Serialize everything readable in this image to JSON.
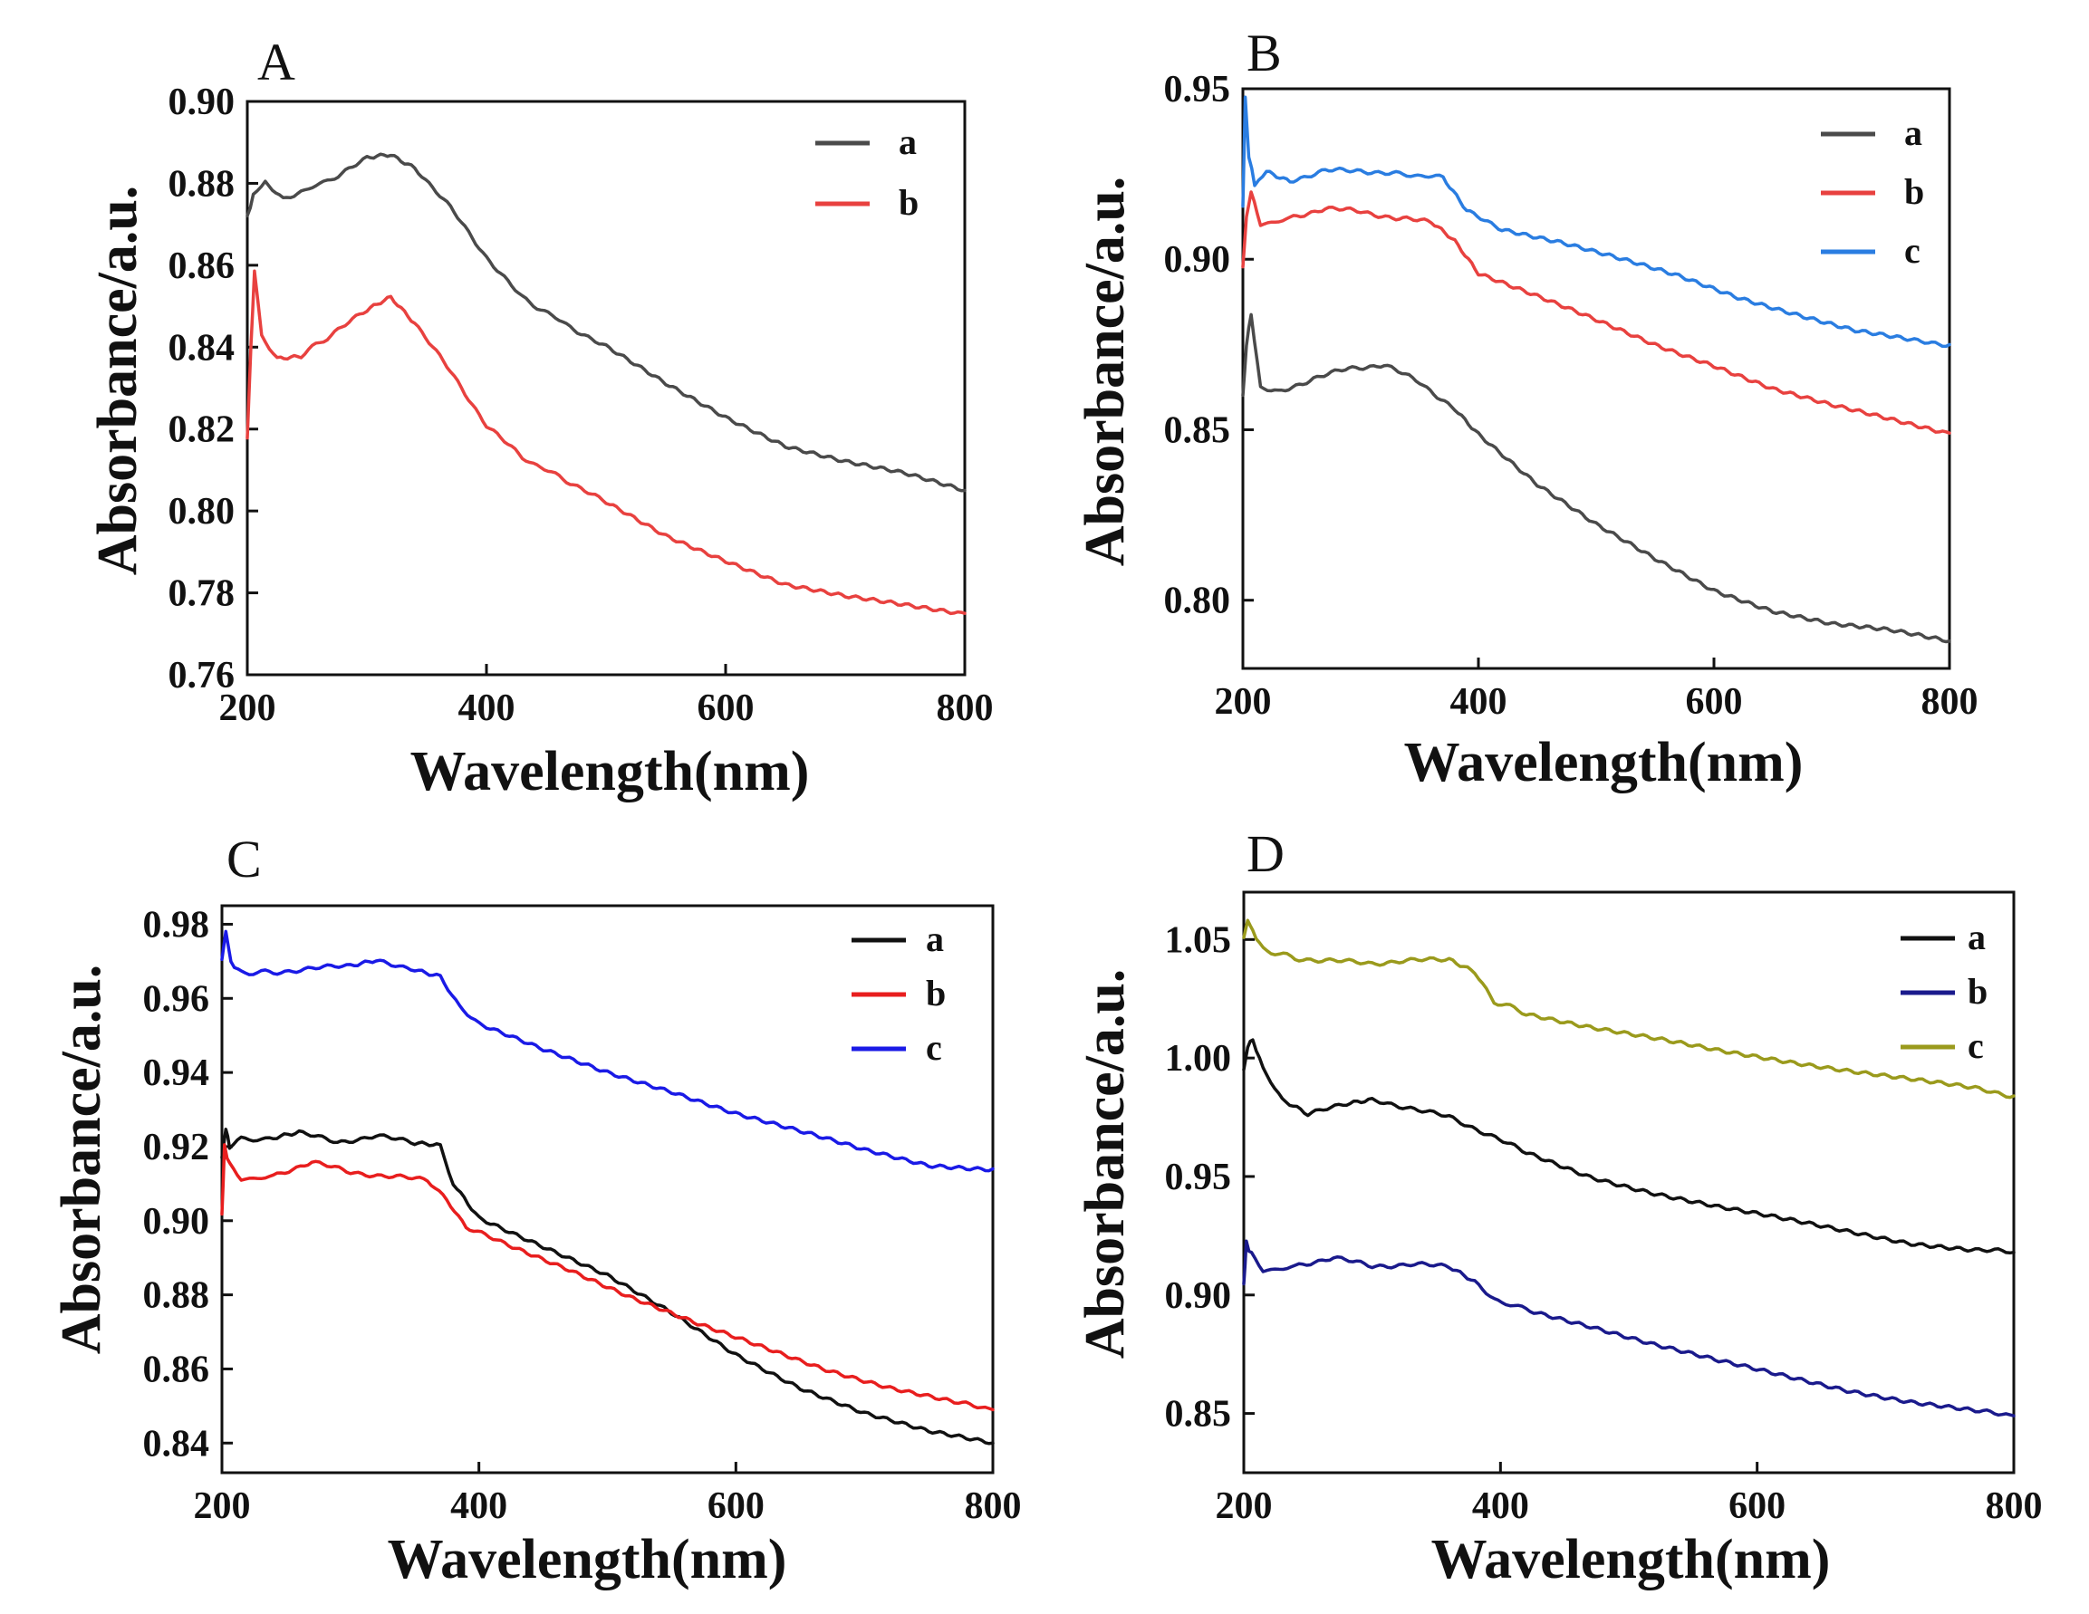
{
  "chart_data": [
    {
      "type": "line",
      "panel": "A",
      "xlabel": "Wavelength(nm)",
      "ylabel": "Absorbance/a.u.",
      "xlim": [
        200,
        800
      ],
      "ylim": [
        0.76,
        0.9
      ],
      "xticks": [
        "200",
        "400",
        "600",
        "800"
      ],
      "yticks": [
        "0.76",
        "0.78",
        "0.80",
        "0.82",
        "0.84",
        "0.86",
        "0.88",
        "0.90"
      ],
      "xtick_values": [
        200,
        400,
        600,
        800
      ],
      "ytick_values": [
        0.76,
        0.78,
        0.8,
        0.82,
        0.84,
        0.86,
        0.88,
        0.9
      ],
      "legend_position": "top-right",
      "series": [
        {
          "name": "a",
          "color": "#4a4a4a",
          "x": [
            200,
            205,
            215,
            230,
            245,
            270,
            300,
            320,
            340,
            370,
            400,
            430,
            470,
            500,
            550,
            600,
            650,
            700,
            750,
            800
          ],
          "y": [
            0.872,
            0.877,
            0.88,
            0.876,
            0.878,
            0.881,
            0.886,
            0.887,
            0.884,
            0.874,
            0.862,
            0.852,
            0.845,
            0.84,
            0.831,
            0.823,
            0.816,
            0.812,
            0.809,
            0.805
          ]
        },
        {
          "name": "b",
          "color": "#e8413f",
          "x": [
            200,
            203,
            206,
            212,
            225,
            245,
            270,
            300,
            320,
            340,
            370,
            400,
            430,
            470,
            500,
            550,
            600,
            650,
            700,
            750,
            800
          ],
          "y": [
            0.818,
            0.84,
            0.858,
            0.843,
            0.837,
            0.838,
            0.843,
            0.849,
            0.852,
            0.846,
            0.834,
            0.821,
            0.813,
            0.807,
            0.802,
            0.794,
            0.788,
            0.782,
            0.779,
            0.777,
            0.775
          ]
        }
      ]
    },
    {
      "type": "line",
      "panel": "B",
      "xlabel": "Wavelength(nm)",
      "ylabel": "Absorbance/a.u.",
      "xlim": [
        200,
        800
      ],
      "ylim": [
        0.78,
        0.95
      ],
      "xticks": [
        "200",
        "400",
        "600",
        "800"
      ],
      "yticks": [
        "0.80",
        "0.85",
        "0.90",
        "0.95"
      ],
      "xtick_values": [
        200,
        400,
        600,
        800
      ],
      "ytick_values": [
        0.8,
        0.85,
        0.9,
        0.95
      ],
      "legend_position": "top-right",
      "series": [
        {
          "name": "a",
          "color": "#4a4a4a",
          "x": [
            200,
            203,
            207,
            215,
            230,
            260,
            290,
            320,
            350,
            380,
            400,
            450,
            500,
            550,
            600,
            650,
            700,
            750,
            800
          ],
          "y": [
            0.86,
            0.875,
            0.884,
            0.862,
            0.861,
            0.865,
            0.868,
            0.869,
            0.864,
            0.856,
            0.849,
            0.834,
            0.822,
            0.812,
            0.803,
            0.797,
            0.793,
            0.791,
            0.788
          ]
        },
        {
          "name": "b",
          "color": "#e8413f",
          "x": [
            200,
            203,
            207,
            215,
            240,
            270,
            300,
            330,
            360,
            380,
            400,
            450,
            500,
            550,
            600,
            650,
            700,
            750,
            800
          ],
          "y": [
            0.898,
            0.912,
            0.92,
            0.91,
            0.912,
            0.915,
            0.914,
            0.912,
            0.911,
            0.905,
            0.896,
            0.889,
            0.882,
            0.875,
            0.869,
            0.862,
            0.857,
            0.853,
            0.849
          ]
        },
        {
          "name": "c",
          "color": "#2a7de1",
          "x": [
            200,
            202,
            205,
            210,
            220,
            240,
            270,
            300,
            330,
            370,
            390,
            420,
            470,
            520,
            570,
            620,
            670,
            720,
            770,
            800
          ],
          "y": [
            0.915,
            0.948,
            0.93,
            0.922,
            0.926,
            0.923,
            0.926,
            0.926,
            0.925,
            0.924,
            0.914,
            0.909,
            0.905,
            0.9,
            0.895,
            0.889,
            0.884,
            0.879,
            0.876,
            0.875
          ]
        }
      ]
    },
    {
      "type": "line",
      "panel": "C",
      "xlabel": "Wavelength(nm)",
      "ylabel": "Absorbance/a.u.",
      "xlim": [
        200,
        800
      ],
      "ylim": [
        0.832,
        0.985
      ],
      "xticks": [
        "200",
        "400",
        "600",
        "800"
      ],
      "yticks": [
        "0.84",
        "0.86",
        "0.88",
        "0.90",
        "0.92",
        "0.94",
        "0.96",
        "0.98"
      ],
      "xtick_values": [
        200,
        400,
        600,
        800
      ],
      "ytick_values": [
        0.84,
        0.86,
        0.88,
        0.9,
        0.92,
        0.94,
        0.96,
        0.98
      ],
      "legend_position": "top-right",
      "series": [
        {
          "name": "a",
          "color": "#111111",
          "x": [
            200,
            203,
            206,
            215,
            240,
            260,
            290,
            320,
            350,
            370,
            380,
            400,
            450,
            500,
            550,
            600,
            650,
            700,
            750,
            800
          ],
          "y": [
            0.917,
            0.925,
            0.92,
            0.922,
            0.922,
            0.924,
            0.921,
            0.923,
            0.921,
            0.92,
            0.91,
            0.901,
            0.893,
            0.885,
            0.875,
            0.864,
            0.855,
            0.848,
            0.843,
            0.84
          ]
        },
        {
          "name": "b",
          "color": "#e81e1e",
          "x": [
            200,
            202,
            206,
            215,
            240,
            270,
            300,
            330,
            360,
            375,
            390,
            420,
            470,
            520,
            570,
            620,
            670,
            720,
            770,
            800
          ],
          "y": [
            0.902,
            0.92,
            0.915,
            0.911,
            0.912,
            0.916,
            0.913,
            0.912,
            0.911,
            0.906,
            0.898,
            0.894,
            0.887,
            0.879,
            0.872,
            0.866,
            0.86,
            0.855,
            0.851,
            0.849
          ]
        },
        {
          "name": "c",
          "color": "#1a1ae6",
          "x": [
            200,
            203,
            207,
            215,
            240,
            270,
            300,
            320,
            350,
            370,
            385,
            400,
            450,
            500,
            550,
            600,
            650,
            700,
            750,
            800
          ],
          "y": [
            0.97,
            0.978,
            0.97,
            0.967,
            0.967,
            0.968,
            0.969,
            0.97,
            0.968,
            0.966,
            0.958,
            0.953,
            0.946,
            0.94,
            0.935,
            0.929,
            0.924,
            0.919,
            0.915,
            0.914
          ]
        }
      ]
    },
    {
      "type": "line",
      "panel": "D",
      "xlabel": "Wavelength(nm)",
      "ylabel": "Absorbance/a.u.",
      "xlim": [
        200,
        800
      ],
      "ylim": [
        0.825,
        1.07
      ],
      "xticks": [
        "200",
        "400",
        "600",
        "800"
      ],
      "yticks": [
        "0.85",
        "0.90",
        "0.95",
        "1.00",
        "1.05"
      ],
      "xtick_values": [
        200,
        400,
        600,
        800
      ],
      "ytick_values": [
        0.85,
        0.9,
        0.95,
        1.0,
        1.05
      ],
      "legend_position": "top-right",
      "series": [
        {
          "name": "a",
          "color": "#111111",
          "x": [
            200,
            203,
            207,
            215,
            230,
            250,
            280,
            300,
            330,
            360,
            390,
            420,
            470,
            520,
            570,
            620,
            670,
            720,
            770,
            800
          ],
          "y": [
            0.995,
            1.005,
            1.008,
            0.995,
            0.982,
            0.976,
            0.981,
            0.982,
            0.979,
            0.975,
            0.968,
            0.96,
            0.95,
            0.943,
            0.937,
            0.932,
            0.927,
            0.922,
            0.919,
            0.918
          ]
        },
        {
          "name": "b",
          "color": "#1a1a8c",
          "x": [
            200,
            202,
            206,
            215,
            240,
            270,
            300,
            330,
            360,
            380,
            395,
            420,
            470,
            520,
            570,
            620,
            670,
            720,
            770,
            800
          ],
          "y": [
            0.905,
            0.922,
            0.917,
            0.91,
            0.912,
            0.916,
            0.912,
            0.913,
            0.912,
            0.905,
            0.898,
            0.894,
            0.887,
            0.879,
            0.872,
            0.866,
            0.86,
            0.855,
            0.851,
            0.849
          ]
        },
        {
          "name": "c",
          "color": "#9a9a1c",
          "x": [
            200,
            203,
            207,
            215,
            240,
            270,
            300,
            330,
            360,
            380,
            395,
            420,
            470,
            520,
            570,
            620,
            670,
            720,
            770,
            800
          ],
          "y": [
            1.05,
            1.058,
            1.054,
            1.046,
            1.042,
            1.041,
            1.04,
            1.041,
            1.042,
            1.036,
            1.024,
            1.019,
            1.013,
            1.008,
            1.003,
            0.999,
            0.995,
            0.991,
            0.987,
            0.984
          ]
        }
      ]
    }
  ]
}
